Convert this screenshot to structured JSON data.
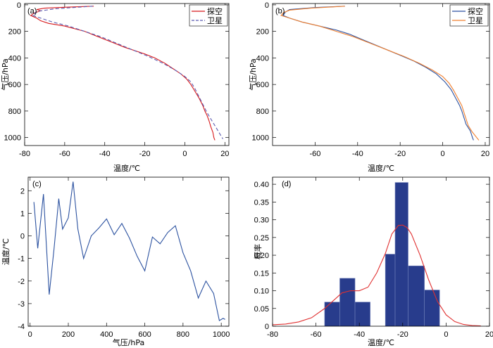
{
  "chart_data": [
    {
      "panel": "(a)",
      "type": "line",
      "xlabel": "温度/℃",
      "ylabel": "气压/hPa",
      "xlim": [
        -80,
        22
      ],
      "ylim": [
        -10,
        1060
      ],
      "y_inverted": true,
      "xticks": [
        -80,
        -60,
        -40,
        -20,
        0,
        20
      ],
      "yticks": [
        0,
        200,
        400,
        600,
        800,
        1000
      ],
      "legend": "top-right",
      "series": [
        {
          "name": "探空",
          "color": "#d7191c",
          "dash": "solid",
          "points": [
            [
              -45.5,
              10
            ],
            [
              -60,
              18
            ],
            [
              -70,
              25
            ],
            [
              -74,
              35
            ],
            [
              -72,
              45
            ],
            [
              -75,
              60
            ],
            [
              -77,
              80
            ],
            [
              -74,
              100
            ],
            [
              -72,
              120
            ],
            [
              -68,
              140
            ],
            [
              -60,
              160
            ],
            [
              -55,
              180
            ],
            [
              -50,
              200
            ],
            [
              -45,
              230
            ],
            [
              -40,
              260
            ],
            [
              -35,
              290
            ],
            [
              -30,
              320
            ],
            [
              -25,
              345
            ],
            [
              -20,
              370
            ],
            [
              -15,
              400
            ],
            [
              -10,
              440
            ],
            [
              -6,
              480
            ],
            [
              -2,
              520
            ],
            [
              1,
              560
            ],
            [
              3,
              600
            ],
            [
              5,
              650
            ],
            [
              7,
              700
            ],
            [
              9,
              760
            ],
            [
              10,
              800
            ],
            [
              11,
              830
            ],
            [
              12,
              870
            ],
            [
              13,
              920
            ],
            [
              14,
              960
            ],
            [
              14.5,
              1000
            ],
            [
              15,
              1020
            ]
          ]
        },
        {
          "name": "卫星",
          "color": "#5b5bb0",
          "dash": "dashed",
          "points": [
            [
              -46,
              10
            ],
            [
              -65,
              30
            ],
            [
              -74,
              50
            ],
            [
              -76,
              80
            ],
            [
              -72,
              100
            ],
            [
              -66,
              130
            ],
            [
              -58,
              160
            ],
            [
              -50,
              200
            ],
            [
              -42,
              240
            ],
            [
              -34,
              290
            ],
            [
              -26,
              340
            ],
            [
              -18,
              390
            ],
            [
              -11,
              440
            ],
            [
              -5,
              490
            ],
            [
              0,
              540
            ],
            [
              3,
              580
            ],
            [
              5,
              630
            ],
            [
              7,
              690
            ],
            [
              9,
              750
            ],
            [
              11,
              810
            ],
            [
              13,
              860
            ],
            [
              15,
              910
            ],
            [
              17,
              960
            ],
            [
              19,
              1010
            ]
          ]
        }
      ]
    },
    {
      "panel": "(b)",
      "type": "line",
      "xlabel": "温度/℃",
      "ylabel": "气压/hPa",
      "xlim": [
        -80,
        22
      ],
      "ylim": [
        -10,
        1060
      ],
      "y_inverted": true,
      "xticks": [
        -60,
        -40,
        -20,
        0,
        20
      ],
      "yticks": [
        0,
        200,
        400,
        600,
        800,
        1000
      ],
      "legend": "top-right",
      "series": [
        {
          "name": "探空",
          "color": "#2c52a0",
          "dash": "solid",
          "points": [
            [
              -46,
              10
            ],
            [
              -60,
              20
            ],
            [
              -72,
              35
            ],
            [
              -74,
              55
            ],
            [
              -75,
              80
            ],
            [
              -72,
              100
            ],
            [
              -66,
              130
            ],
            [
              -58,
              160
            ],
            [
              -50,
              190
            ],
            [
              -44,
              220
            ],
            [
              -38,
              260
            ],
            [
              -32,
              300
            ],
            [
              -26,
              340
            ],
            [
              -20,
              380
            ],
            [
              -14,
              420
            ],
            [
              -8,
              470
            ],
            [
              -3,
              520
            ],
            [
              1,
              580
            ],
            [
              4,
              640
            ],
            [
              6,
              700
            ],
            [
              8,
              760
            ],
            [
              9,
              800
            ],
            [
              10,
              850
            ],
            [
              11,
              900
            ],
            [
              13,
              950
            ],
            [
              14,
              1000
            ],
            [
              14.5,
              1020
            ]
          ]
        },
        {
          "name": "卫星",
          "color": "#f08030",
          "dash": "solid",
          "points": [
            [
              -46,
              10
            ],
            [
              -62,
              25
            ],
            [
              -72,
              40
            ],
            [
              -75,
              60
            ],
            [
              -76,
              80
            ],
            [
              -72,
              100
            ],
            [
              -66,
              130
            ],
            [
              -58,
              160
            ],
            [
              -50,
              200
            ],
            [
              -42,
              240
            ],
            [
              -34,
              290
            ],
            [
              -26,
              340
            ],
            [
              -18,
              390
            ],
            [
              -11,
              440
            ],
            [
              -5,
              490
            ],
            [
              0,
              540
            ],
            [
              3,
              590
            ],
            [
              5,
              640
            ],
            [
              7,
              700
            ],
            [
              9,
              760
            ],
            [
              10,
              810
            ],
            [
              11,
              860
            ],
            [
              12,
              910
            ],
            [
              14,
              960
            ],
            [
              16,
              1000
            ],
            [
              17,
              1020
            ]
          ]
        }
      ]
    },
    {
      "panel": "(c)",
      "type": "line",
      "xlabel": "气压/hPa",
      "ylabel": "温度/℃",
      "xlim": [
        -10,
        1040
      ],
      "ylim": [
        -4,
        2.6
      ],
      "xticks": [
        0,
        200,
        400,
        600,
        800,
        1000
      ],
      "yticks": [
        -4,
        -3,
        -2,
        -1,
        0,
        1,
        2
      ],
      "series": [
        {
          "name": "",
          "color": "#2c52a0",
          "dash": "solid",
          "x": [
            20,
            40,
            70,
            100,
            125,
            150,
            170,
            200,
            225,
            250,
            280,
            320,
            360,
            400,
            440,
            480,
            520,
            560,
            600,
            640,
            680,
            720,
            760,
            800,
            840,
            880,
            920,
            960,
            990,
            1010,
            1020
          ],
          "y": [
            1.5,
            -0.55,
            1.85,
            -2.6,
            -0.6,
            1.65,
            0.3,
            0.8,
            2.4,
            0.3,
            -1.0,
            0.0,
            0.35,
            0.75,
            0.05,
            0.55,
            -0.1,
            -0.9,
            -1.55,
            -0.05,
            -0.35,
            0.15,
            0.45,
            -0.75,
            -1.55,
            -2.75,
            -2.0,
            -2.55,
            -3.75,
            -3.65,
            -3.7
          ]
        }
      ]
    },
    {
      "panel": "(d)",
      "type": "bar",
      "subtype": "histogram-with-density",
      "xlabel": "温度/℃",
      "ylabel": "概率",
      "xlim": [
        -80,
        20
      ],
      "ylim": [
        0,
        0.42
      ],
      "xticks": [
        -80,
        -60,
        -40,
        -20,
        0,
        20
      ],
      "yticks": [
        0,
        0.05,
        0.1,
        0.15,
        0.2,
        0.25,
        0.3,
        0.35,
        0.4
      ],
      "bar_color": "#283c8c",
      "curve_color": "#e03030",
      "bins": [
        {
          "x0": -56,
          "x1": -49,
          "value": 0.068
        },
        {
          "x0": -49,
          "x1": -42,
          "value": 0.135
        },
        {
          "x0": -42,
          "x1": -35,
          "value": 0.068
        },
        {
          "x0": -35,
          "x1": -28,
          "value": 0.0
        },
        {
          "x0": -28,
          "x1": -23.5,
          "value": 0.203
        },
        {
          "x0": -23.5,
          "x1": -17.5,
          "value": 0.405
        },
        {
          "x0": -17.5,
          "x1": -10,
          "value": 0.17
        },
        {
          "x0": -10,
          "x1": -3,
          "value": 0.102
        }
      ],
      "density_curve": {
        "x": [
          -80,
          -74,
          -68,
          -62,
          -56,
          -52,
          -48,
          -44,
          -40,
          -36,
          -32,
          -28,
          -25,
          -22,
          -20,
          -18,
          -16,
          -12,
          -8,
          -4,
          0,
          4,
          8,
          12,
          16
        ],
        "y": [
          0.004,
          0.006,
          0.012,
          0.024,
          0.05,
          0.072,
          0.094,
          0.1,
          0.1,
          0.11,
          0.15,
          0.205,
          0.26,
          0.284,
          0.285,
          0.278,
          0.26,
          0.2,
          0.13,
          0.07,
          0.032,
          0.013,
          0.005,
          0.002,
          0.001
        ]
      }
    }
  ],
  "legend_labels": [
    "探空",
    "卫星"
  ]
}
